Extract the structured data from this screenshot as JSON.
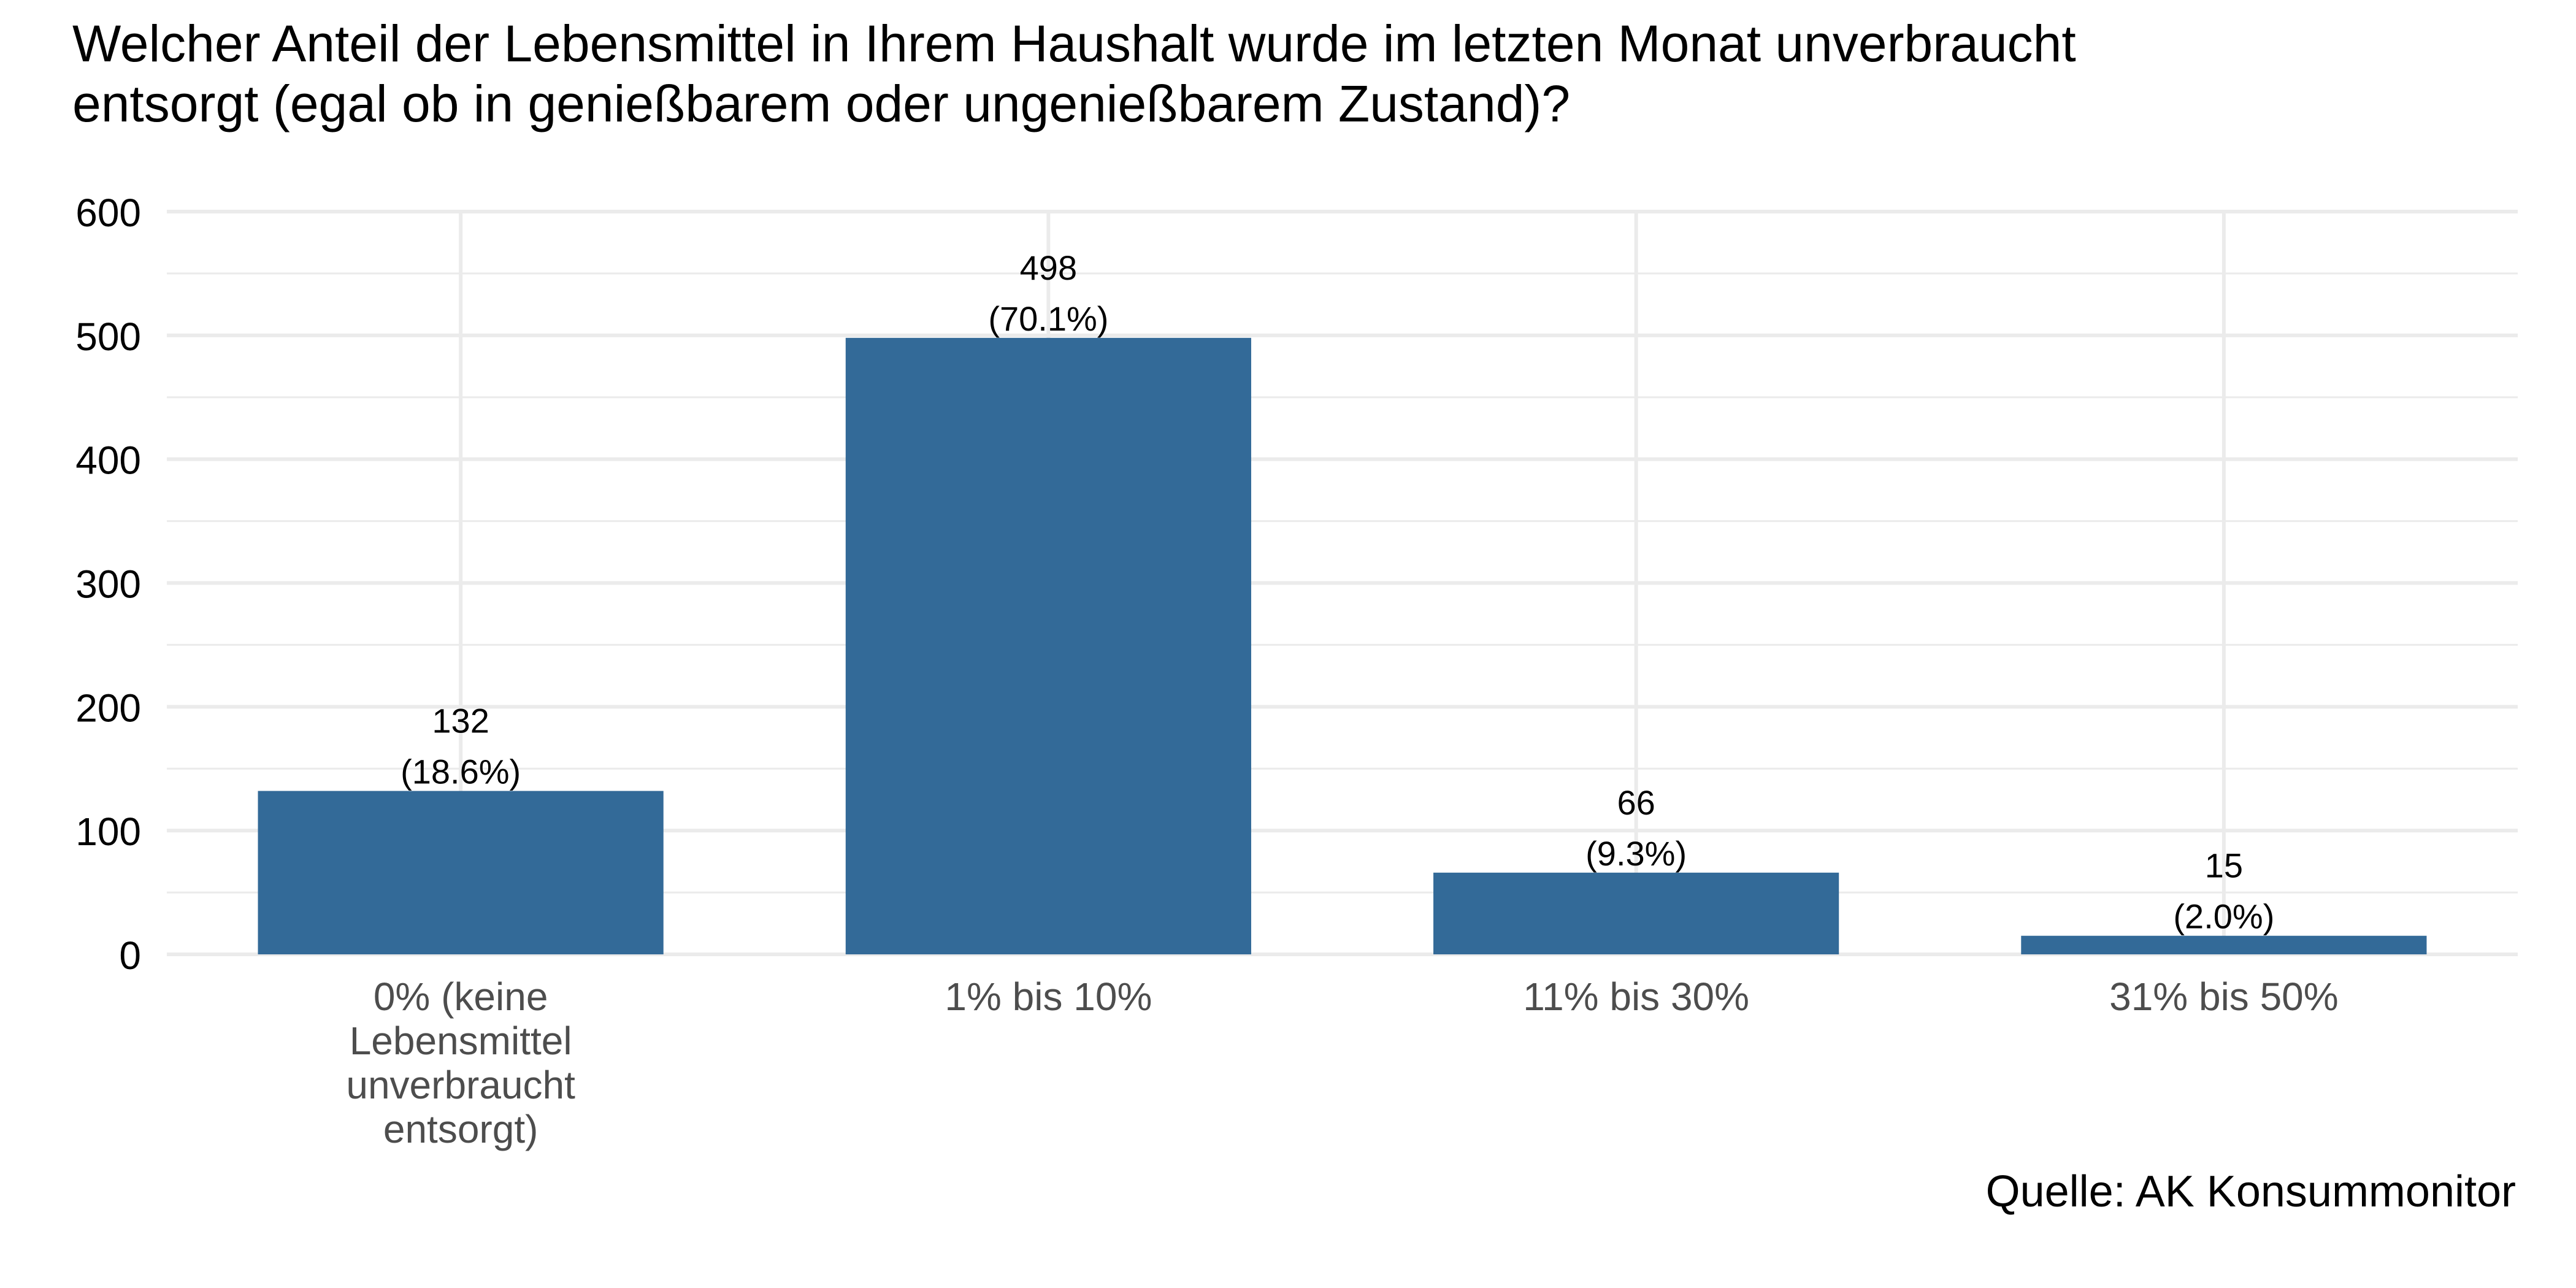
{
  "chart_data": {
    "type": "bar",
    "title": "Welcher Anteil der Lebensmittel in Ihrem Haushalt wurde im letzten Monat unverbraucht entsorgt (egal ob in genießbarem oder ungenießbarem Zustand)?",
    "title_lines": [
      "Welcher Anteil der Lebensmittel in Ihrem Haushalt wurde im letzten Monat unverbraucht",
      "entsorgt (egal ob in genießbarem oder ungenießbarem Zustand)?"
    ],
    "categories": [
      [
        "0% (keine",
        "Lebensmittel",
        "unverbraucht",
        "entsorgt)"
      ],
      [
        "1% bis 10%"
      ],
      [
        "11% bis 30%"
      ],
      [
        "31% bis 50%"
      ]
    ],
    "values": [
      132,
      498,
      66,
      15
    ],
    "value_labels": [
      "132",
      "498",
      "66",
      "15"
    ],
    "percent_labels": [
      "(18.6%)",
      "(70.1%)",
      "(9.3%)",
      "(2.0%)"
    ],
    "ylim": [
      0,
      600
    ],
    "y_ticks": [
      0,
      100,
      200,
      300,
      400,
      500,
      600
    ],
    "xlabel": "",
    "ylabel": "",
    "grid": true,
    "bar_color": "#336A98",
    "grid_color": "#EBEBEB",
    "source": "Quelle: AK Konsummonitor"
  }
}
